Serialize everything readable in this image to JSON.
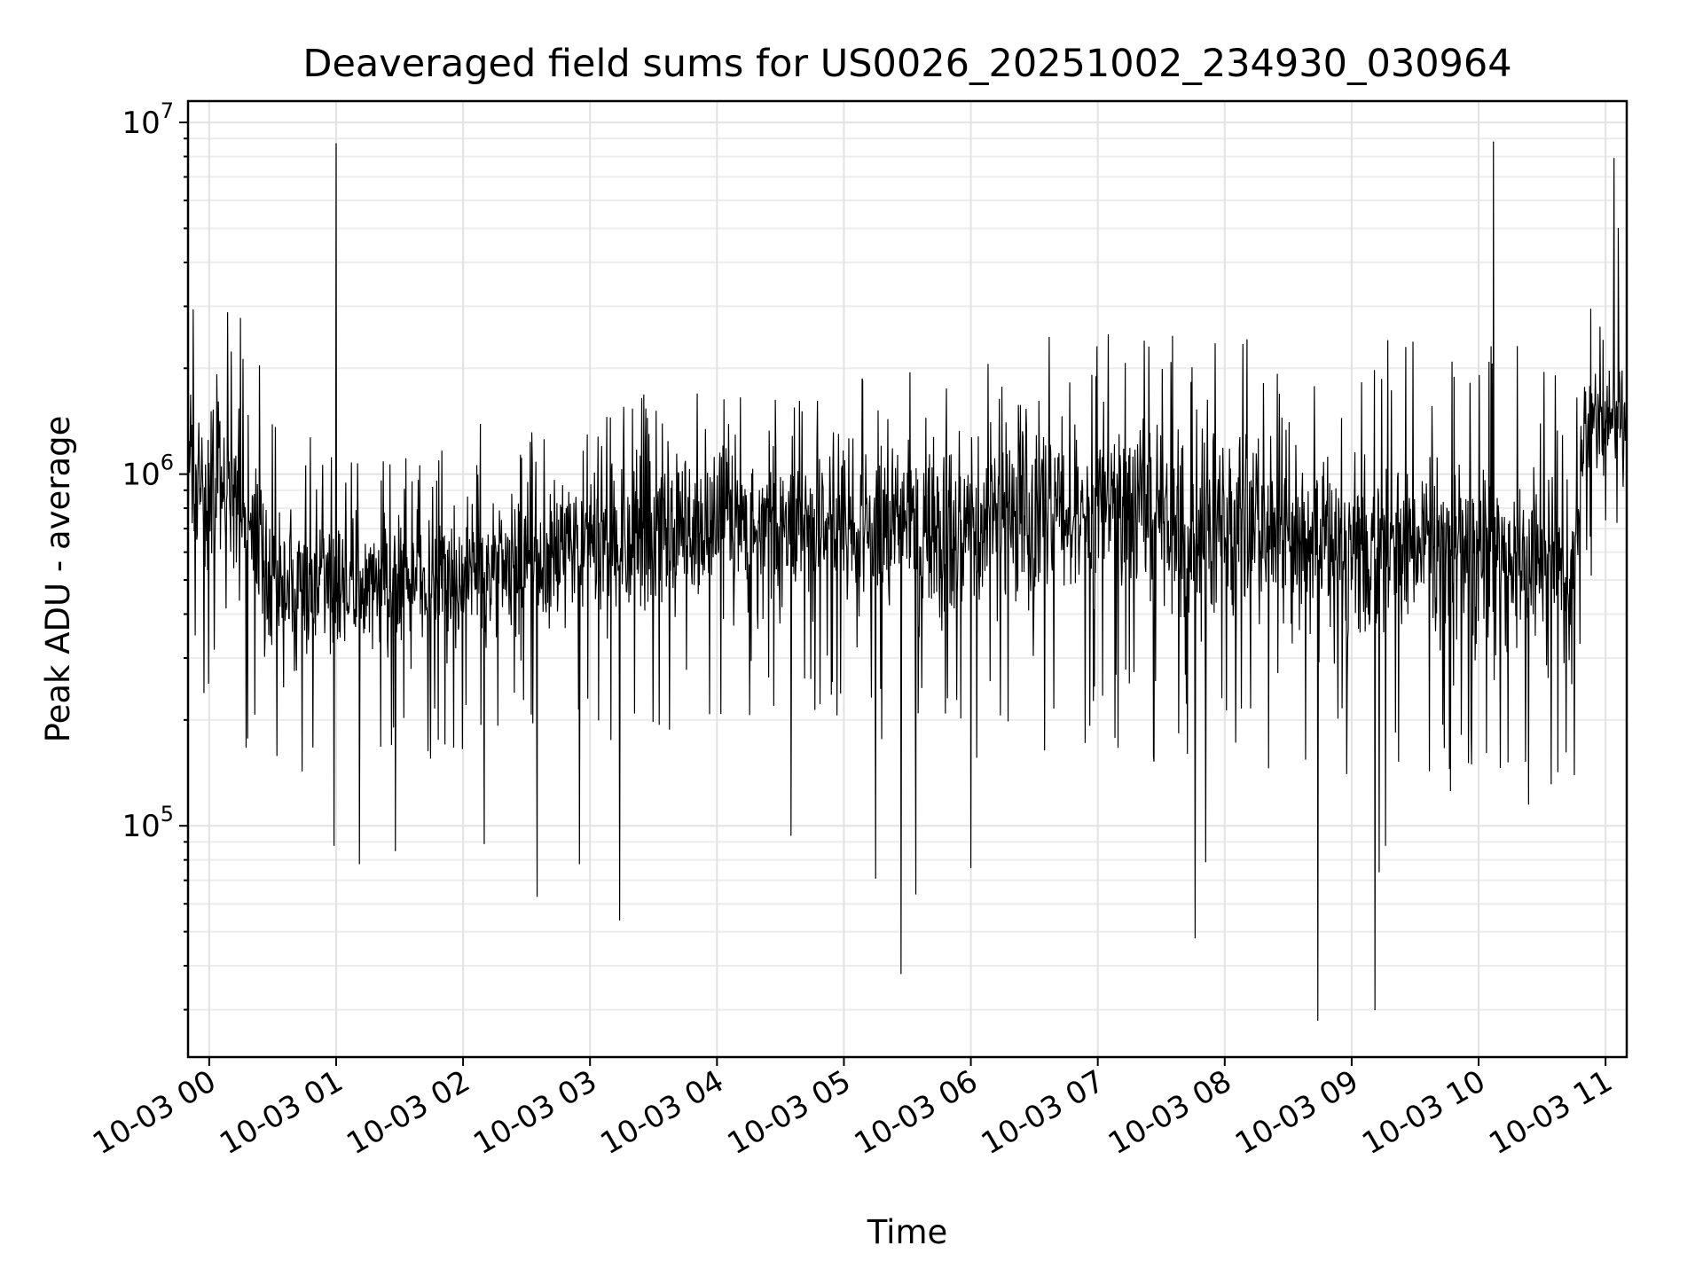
{
  "chart_data": {
    "type": "line",
    "title": "Deaveraged field sums for US0026_20251002_234930_030964",
    "xlabel": "Time",
    "ylabel": "Peak ADU - average",
    "yscale": "log",
    "xlim": [
      "10-02 23:50",
      "10-03 11:10"
    ],
    "ylim": [
      22000,
      11500000
    ],
    "grid": true,
    "x_ticks": [
      "10-03 00",
      "10-03 01",
      "10-03 02",
      "10-03 03",
      "10-03 04",
      "10-03 05",
      "10-03 06",
      "10-03 07",
      "10-03 08",
      "10-03 09",
      "10-03 10",
      "10-03 11"
    ],
    "y_ticks": [
      {
        "base": "10",
        "exp": "5",
        "value": 100000
      },
      {
        "base": "10",
        "exp": "6",
        "value": 1000000
      },
      {
        "base": "10",
        "exp": "7",
        "value": 10000000
      }
    ],
    "series": [
      {
        "color": "#000000",
        "typical_envelope": {
          "x": [
            "10-02 23:50",
            "10-03 00:15",
            "10-03 00:30",
            "10-03 01:00",
            "10-03 02:00",
            "10-03 03:00",
            "10-03 04:00",
            "10-03 05:00",
            "10-03 06:00",
            "10-03 07:00",
            "10-03 08:00",
            "10-03 09:00",
            "10-03 10:00",
            "10-03 10:45",
            "10-03 10:50",
            "10-03 11:10"
          ],
          "median": [
            1000000,
            900000,
            500000,
            480000,
            520000,
            600000,
            750000,
            700000,
            700000,
            850000,
            700000,
            650000,
            600000,
            500000,
            1300000,
            1500000
          ],
          "low": [
            450000,
            350000,
            200000,
            250000,
            250000,
            280000,
            330000,
            300000,
            280000,
            330000,
            260000,
            240000,
            220000,
            200000,
            700000,
            1000000
          ],
          "high": [
            3000000,
            3000000,
            1300000,
            1000000,
            1200000,
            1400000,
            1700000,
            1600000,
            1700000,
            2300000,
            2000000,
            1900000,
            2000000,
            1600000,
            3500000,
            2200000
          ]
        },
        "spikes": [
          {
            "x": "10-03 01:00",
            "y": 8700000
          },
          {
            "x": "10-03 10:07",
            "y": 8800000
          },
          {
            "x": "10-03 11:04",
            "y": 7900000
          },
          {
            "x": "10-03 11:06",
            "y": 5000000
          },
          {
            "x": "10-03 00:59",
            "y": 88000
          },
          {
            "x": "10-03 01:11",
            "y": 78000
          },
          {
            "x": "10-03 01:28",
            "y": 85000
          },
          {
            "x": "10-03 02:10",
            "y": 89000
          },
          {
            "x": "10-03 02:35",
            "y": 63000
          },
          {
            "x": "10-03 02:55",
            "y": 78000
          },
          {
            "x": "10-03 03:14",
            "y": 54000
          },
          {
            "x": "10-03 04:35",
            "y": 94000
          },
          {
            "x": "10-03 05:15",
            "y": 71000
          },
          {
            "x": "10-03 05:27",
            "y": 38000
          },
          {
            "x": "10-03 05:34",
            "y": 64000
          },
          {
            "x": "10-03 06:00",
            "y": 76000
          },
          {
            "x": "10-03 07:46",
            "y": 48000
          },
          {
            "x": "10-03 07:51",
            "y": 79000
          },
          {
            "x": "10-03 08:44",
            "y": 28000
          },
          {
            "x": "10-03 09:11",
            "y": 30000
          },
          {
            "x": "10-03 09:13",
            "y": 74000
          },
          {
            "x": "10-03 09:16",
            "y": 88000
          }
        ]
      }
    ]
  }
}
